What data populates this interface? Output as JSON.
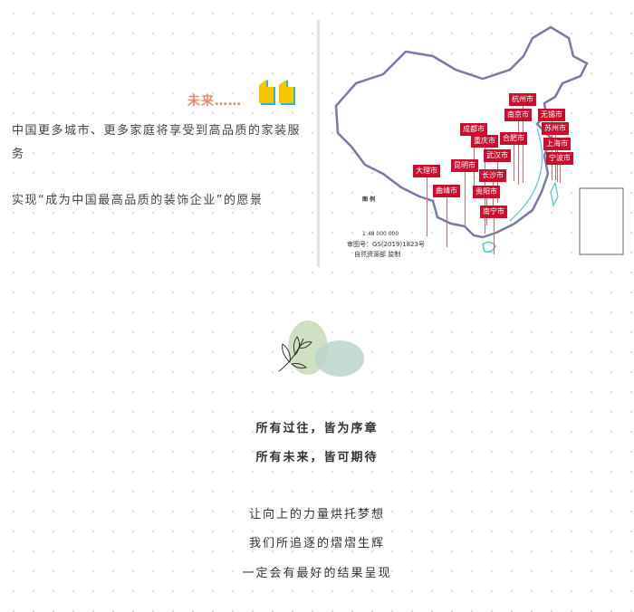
{
  "top": {
    "future_label": "未来……",
    "quote_icon": "double-quote-icon",
    "paragraph1": "中国更多城市、更多家庭将享受到高品质的家装服务",
    "paragraph2": "实现“成为中国最高品质的装饰企业”的愿景"
  },
  "map": {
    "cities": [
      "杭州市",
      "南京市",
      "无锡市",
      "成都市",
      "苏州市",
      "合肥市",
      "重庆市",
      "上海市",
      "武汉市",
      "宁波市",
      "昆明市",
      "大理市",
      "长沙市",
      "曲靖市",
      "贵阳市",
      "南宁市"
    ],
    "legend_title": "图 例",
    "scale": "1:48 000 000",
    "approval_no": "审图号：GS(2019)1823号",
    "issuer": "自然资源部 监制",
    "flag_color": "#c8102e"
  },
  "bottom": {
    "leaf_icon": "leaf-illustration",
    "line1": "所有过往，皆为序章",
    "line2": "所有未来，皆可期待",
    "line3": "让向上的力量烘托梦想",
    "line4": "我们所追逐的熠熠生辉",
    "line5": "一定会有最好的结果呈现"
  }
}
